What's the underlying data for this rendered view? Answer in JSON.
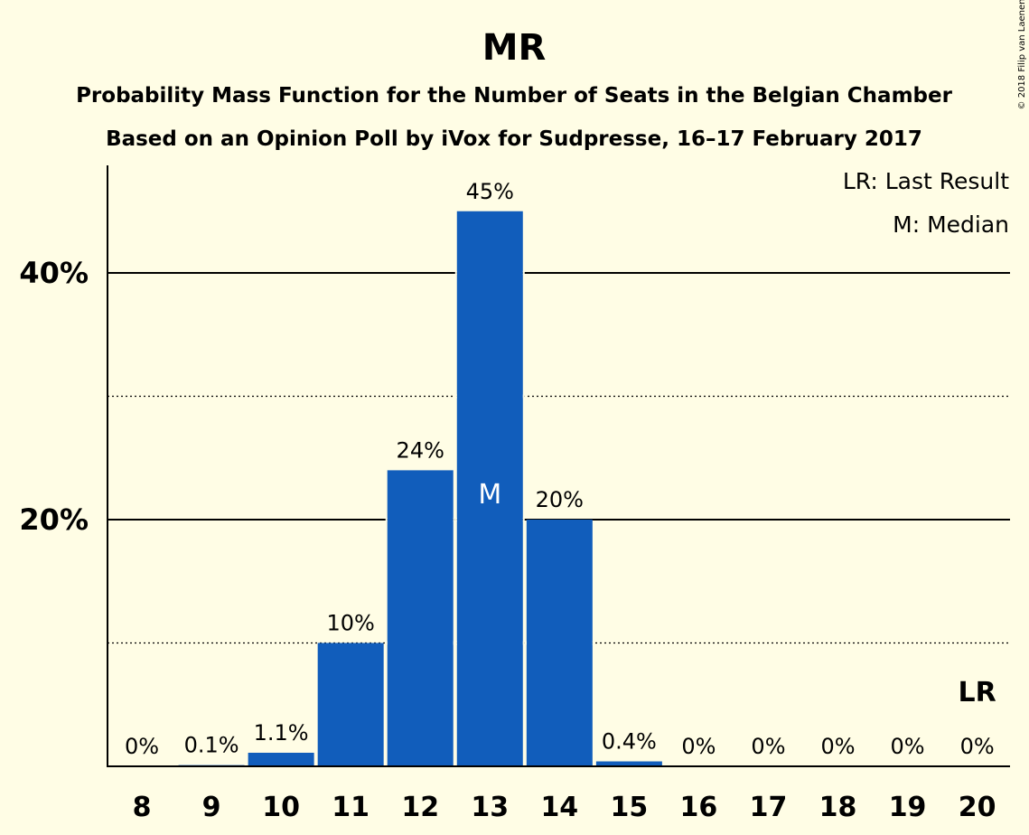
{
  "chart_data": {
    "type": "bar",
    "title": "MR",
    "subtitle_lines": [
      "Probability Mass Function for the Number of Seats in the Belgian Chamber",
      "Based on an Opinion Poll by iVox for Sudpresse, 16–17 February 2017"
    ],
    "copyright": "© 2018 Filip van Laenen",
    "categories": [
      "8",
      "9",
      "10",
      "11",
      "12",
      "13",
      "14",
      "15",
      "16",
      "17",
      "18",
      "19",
      "20"
    ],
    "values": [
      0,
      0.1,
      1.1,
      10,
      24,
      45,
      20,
      0.4,
      0,
      0,
      0,
      0,
      0
    ],
    "value_labels": [
      "0%",
      "0.1%",
      "1.1%",
      "10%",
      "24%",
      "45%",
      "20%",
      "0.4%",
      "0%",
      "0%",
      "0%",
      "0%",
      "0%"
    ],
    "ylim": [
      0,
      49
    ],
    "yticks": [
      {
        "value": 20,
        "label": "20%"
      },
      {
        "value": 40,
        "label": "40%"
      }
    ],
    "minor_gridlines": [
      10,
      30
    ],
    "legend": {
      "position": "top-right",
      "entries": [
        "LR: Last Result",
        "M: Median"
      ]
    },
    "median": {
      "category": "13",
      "label": "M"
    },
    "last_result": {
      "category": "20",
      "label": "LR"
    },
    "colors": {
      "background": "#FFFDE5",
      "bar": "#115DBB",
      "median_text": "#FFFFFF",
      "text": "#000000"
    }
  }
}
